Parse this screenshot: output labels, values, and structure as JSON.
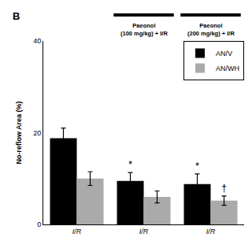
{
  "chart_data": {
    "type": "bar",
    "categories": [
      "I/R",
      "I/R",
      "I/R"
    ],
    "series": [
      {
        "name": "AN/V",
        "color": "#000000",
        "values": [
          18.8,
          9.5,
          8.8
        ],
        "errors": [
          2.2,
          1.8,
          2.2
        ],
        "significance": [
          null,
          "*",
          "*"
        ]
      },
      {
        "name": "AN/WH",
        "color": "#aaaaaa",
        "values": [
          10.0,
          6.0,
          5.2
        ],
        "errors": [
          1.5,
          1.3,
          1.0
        ],
        "significance": [
          null,
          null,
          "†"
        ]
      }
    ],
    "ylabel": "No-reflow Area (%)",
    "ylim": [
      0,
      40
    ],
    "yticks": [
      0,
      20,
      40
    ],
    "grid": false,
    "legend": "upper right",
    "annotations": [
      {
        "text": "B"
      },
      {
        "text": "Paeonol\n(100 mg/kg) + I/R",
        "x": 1
      },
      {
        "text": "Paeonol\n(200 mg/kg) + I/R",
        "x": 2
      }
    ]
  }
}
